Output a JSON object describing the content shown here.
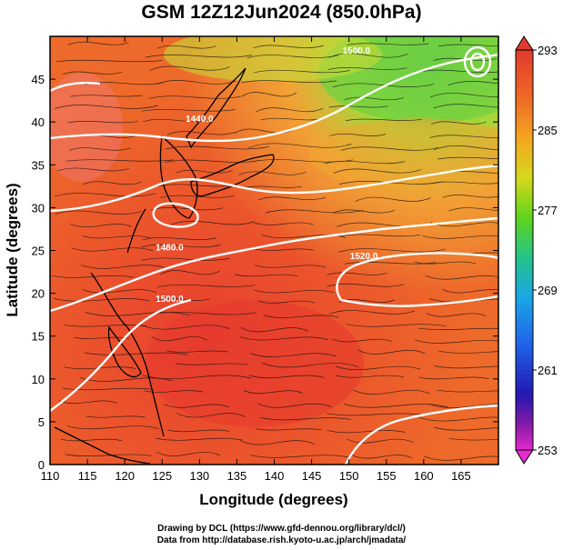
{
  "title": "GSM 12Z12Jun2024 (850.0hPa)",
  "xaxis": {
    "label": "Longitude (degrees)",
    "ticks": [
      110,
      115,
      120,
      125,
      130,
      135,
      140,
      145,
      150,
      155,
      160,
      165
    ],
    "range": [
      110,
      170
    ]
  },
  "yaxis": {
    "label": "Latitude  (degrees)",
    "ticks": [
      0,
      5,
      10,
      15,
      20,
      25,
      30,
      35,
      40,
      45
    ],
    "range": [
      0,
      50
    ]
  },
  "colorbar": {
    "range": [
      253,
      293
    ],
    "labels": [
      293,
      285,
      277,
      269,
      261,
      253
    ]
  },
  "contour_labels": [
    {
      "text": "1440.0",
      "lon": 130,
      "lat": 40
    },
    {
      "text": "1500.0",
      "lon": 151,
      "lat": 48
    },
    {
      "text": "1480.0",
      "lon": 126,
      "lat": 25
    },
    {
      "text": "1520.0",
      "lon": 152,
      "lat": 24
    },
    {
      "text": "1500.0",
      "lon": 126,
      "lat": 19
    }
  ],
  "credits": [
    "Drawing by DCL (https://www.gfd-dennou.org/library/dcl/)",
    "Data from http://database.rish.kyoto-u.ac.jp/arch/jmadata/"
  ]
}
